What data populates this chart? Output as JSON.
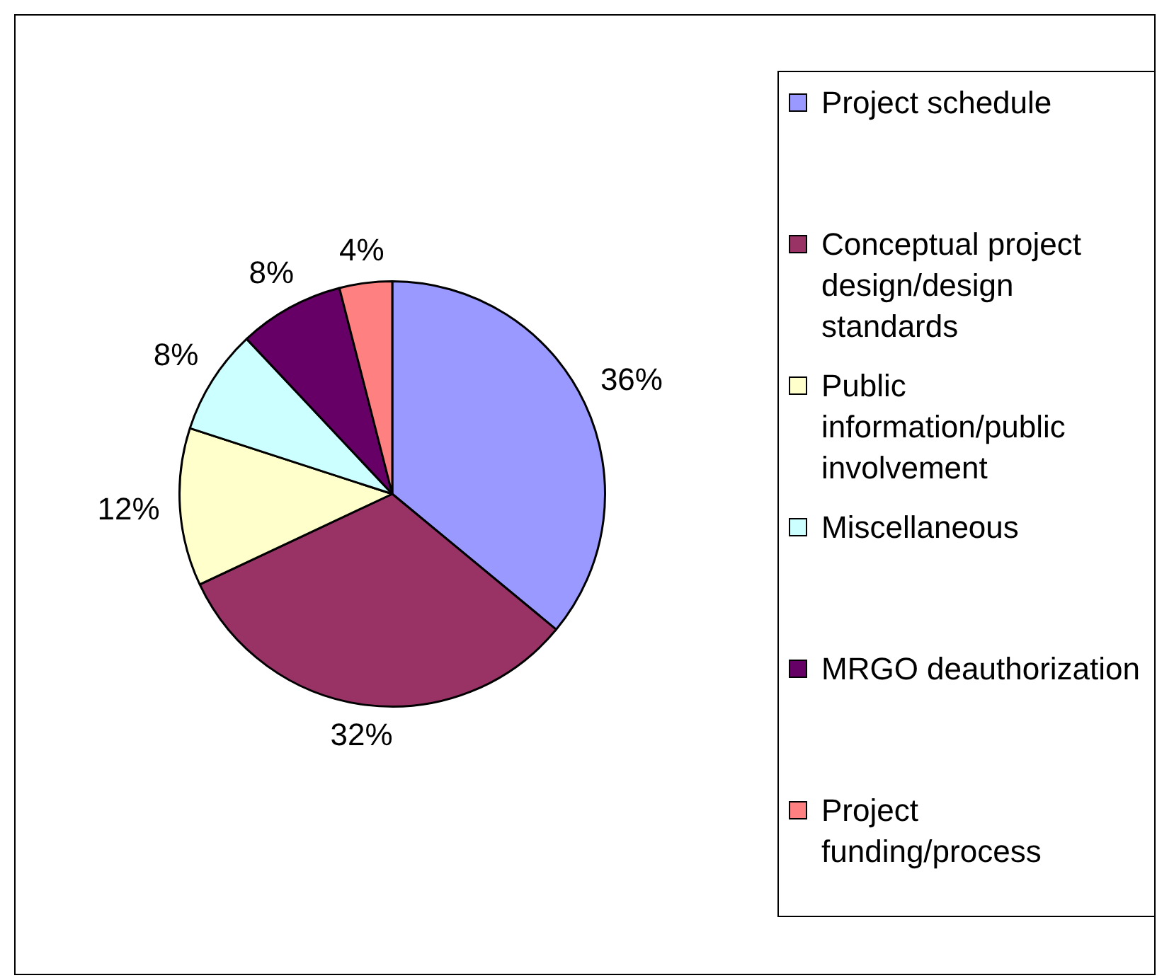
{
  "chart_data": {
    "type": "pie",
    "categories": [
      "Project schedule",
      "Conceptual project design/design standards",
      "Public information/public involvement",
      "Miscellaneous",
      "MRGO deauthorization",
      "Project funding/process"
    ],
    "values": [
      36,
      32,
      12,
      8,
      8,
      4
    ],
    "colors": [
      "#9999ff",
      "#993366",
      "#ffffcc",
      "#ccffff",
      "#660066",
      "#ff8080"
    ],
    "value_labels": [
      "36%",
      "32%",
      "12%",
      "8%",
      "8%",
      "4%"
    ],
    "legend": "right"
  }
}
